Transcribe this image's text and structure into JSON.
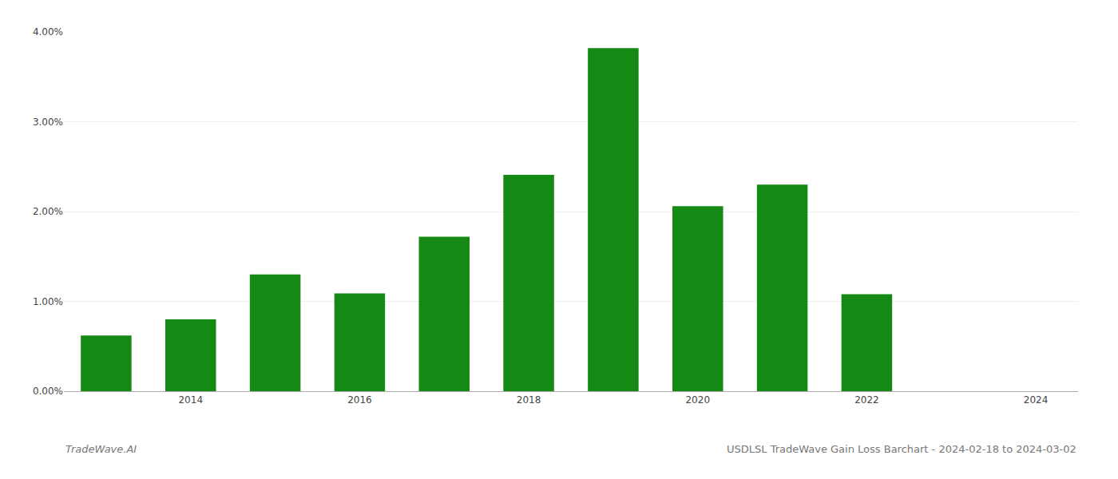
{
  "chart_data": {
    "type": "bar",
    "x": [
      2013,
      2014,
      2015,
      2016,
      2017,
      2018,
      2019,
      2020,
      2021,
      2022,
      2023
    ],
    "values": [
      0.0062,
      0.008,
      0.013,
      0.0109,
      0.0172,
      0.0241,
      0.0382,
      0.0206,
      0.023,
      0.0108,
      0.0
    ],
    "color": "#148a14",
    "xlim": [
      2012.5,
      2024.5
    ],
    "xticks": [
      2014,
      2016,
      2018,
      2020,
      2022,
      2024
    ],
    "ylim": [
      0.0,
      0.04
    ],
    "yticks": [
      {
        "value": 0.0,
        "label": "0.00%"
      },
      {
        "value": 0.01,
        "label": "1.00%"
      },
      {
        "value": 0.02,
        "label": "2.00%"
      },
      {
        "value": 0.03,
        "label": "3.00%"
      },
      {
        "value": 0.04,
        "label": "4.00%"
      }
    ],
    "grid": true,
    "annotations": [
      "TradeWave.AI",
      "USDLSL TradeWave Gain Loss Barchart - 2024-02-18 to 2024-03-02"
    ]
  }
}
